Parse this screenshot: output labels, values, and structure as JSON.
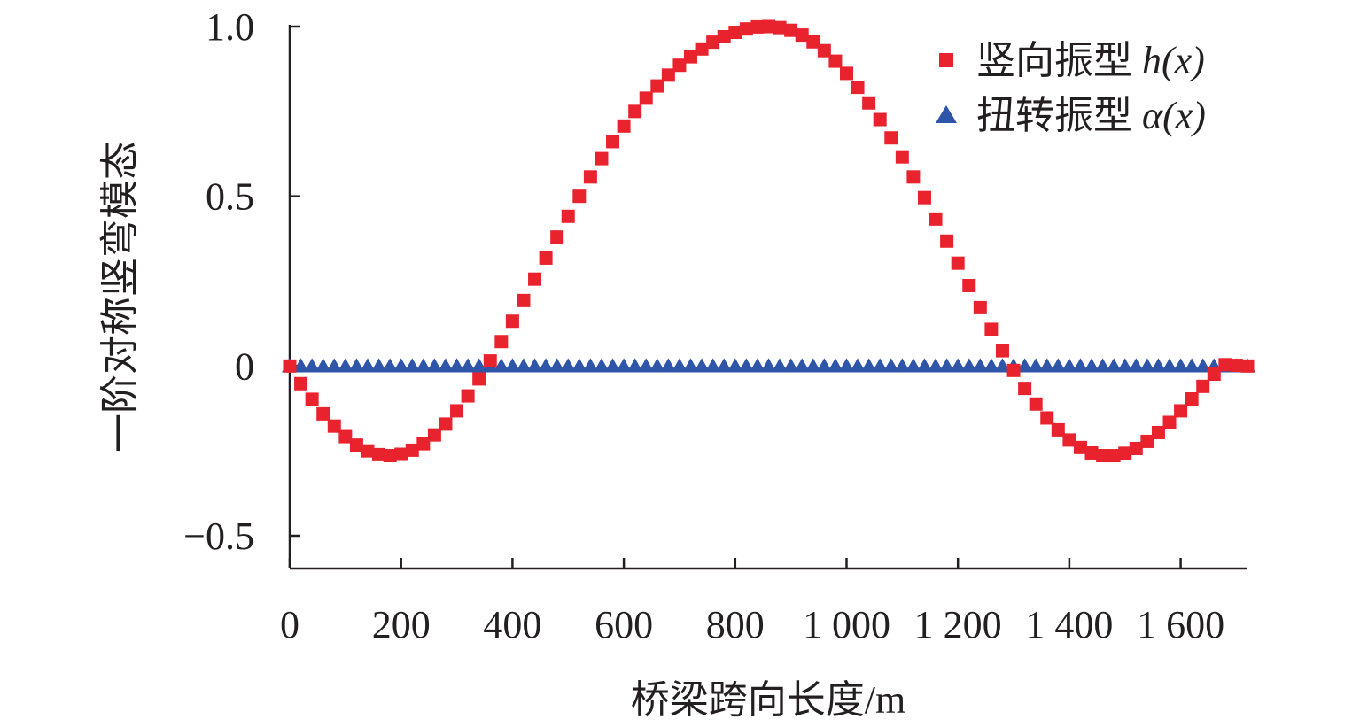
{
  "chart_data": {
    "type": "scatter",
    "xlabel": "桥梁跨向长度/m",
    "ylabel": "一阶对称竖弯模态",
    "xlim": [
      0,
      1720
    ],
    "ylim": [
      -0.5,
      1.0
    ],
    "x_ticks": [
      {
        "value": 0,
        "label": "0"
      },
      {
        "value": 200,
        "label": "200"
      },
      {
        "value": 400,
        "label": "400"
      },
      {
        "value": 600,
        "label": "600"
      },
      {
        "value": 800,
        "label": "800"
      },
      {
        "value": 1000,
        "label": "1 000"
      },
      {
        "value": 1200,
        "label": "1 200"
      },
      {
        "value": 1400,
        "label": "1 400"
      },
      {
        "value": 1600,
        "label": "1 600"
      }
    ],
    "y_ticks": [
      {
        "value": -0.5,
        "label": "−0.5"
      },
      {
        "value": 0,
        "label": "0"
      },
      {
        "value": 0.5,
        "label": "0.5"
      },
      {
        "value": 1.0,
        "label": "1.0"
      }
    ],
    "legend_position": "top-right",
    "grid": false,
    "series": [
      {
        "name": "竖向振型 h(x)",
        "legend_text": "竖向振型 ",
        "legend_symbol": "h",
        "legend_suffix": "(x)",
        "marker": "square",
        "color": "#e8232d",
        "x": [
          0,
          20,
          40,
          60,
          80,
          100,
          120,
          140,
          160,
          180,
          200,
          220,
          240,
          260,
          280,
          300,
          320,
          340,
          360,
          380,
          400,
          420,
          440,
          460,
          480,
          500,
          520,
          540,
          560,
          580,
          600,
          620,
          640,
          660,
          680,
          700,
          720,
          740,
          760,
          780,
          800,
          820,
          840,
          860,
          880,
          900,
          920,
          940,
          960,
          980,
          1000,
          1020,
          1040,
          1060,
          1080,
          1100,
          1120,
          1140,
          1160,
          1180,
          1200,
          1220,
          1240,
          1260,
          1280,
          1300,
          1320,
          1340,
          1360,
          1380,
          1400,
          1420,
          1440,
          1460,
          1480,
          1500,
          1520,
          1540,
          1560,
          1580,
          1600,
          1620,
          1640,
          1660,
          1680,
          1700,
          1720
        ],
        "y": [
          0,
          -0.052,
          -0.098,
          -0.141,
          -0.177,
          -0.208,
          -0.233,
          -0.25,
          -0.261,
          -0.264,
          -0.26,
          -0.248,
          -0.229,
          -0.203,
          -0.171,
          -0.132,
          -0.088,
          -0.038,
          0.015,
          0.072,
          0.132,
          0.193,
          0.256,
          0.318,
          0.38,
          0.441,
          0.5,
          0.557,
          0.611,
          0.661,
          0.707,
          0.75,
          0.789,
          0.825,
          0.857,
          0.886,
          0.911,
          0.934,
          0.954,
          0.97,
          0.983,
          0.993,
          0.999,
          1.0,
          0.997,
          0.989,
          0.975,
          0.955,
          0.929,
          0.898,
          0.862,
          0.821,
          0.775,
          0.726,
          0.672,
          0.616,
          0.557,
          0.496,
          0.433,
          0.368,
          0.303,
          0.237,
          0.172,
          0.108,
          0.045,
          -0.013,
          -0.066,
          -0.112,
          -0.153,
          -0.188,
          -0.218,
          -0.24,
          -0.256,
          -0.264,
          -0.264,
          -0.257,
          -0.243,
          -0.222,
          -0.196,
          -0.166,
          -0.132,
          -0.097,
          -0.06,
          -0.024,
          0.004,
          0.002,
          0
        ]
      },
      {
        "name": "扭转振型 α(x)",
        "legend_text": "扭转振型 ",
        "legend_symbol": "α",
        "legend_suffix": "(x)",
        "marker": "triangle",
        "color": "#2e55a8",
        "x": [
          0,
          20,
          40,
          60,
          80,
          100,
          120,
          140,
          160,
          180,
          200,
          220,
          240,
          260,
          280,
          300,
          320,
          340,
          360,
          380,
          400,
          420,
          440,
          460,
          480,
          500,
          520,
          540,
          560,
          580,
          600,
          620,
          640,
          660,
          680,
          700,
          720,
          740,
          760,
          780,
          800,
          820,
          840,
          860,
          880,
          900,
          920,
          940,
          960,
          980,
          1000,
          1020,
          1040,
          1060,
          1080,
          1100,
          1120,
          1140,
          1160,
          1180,
          1200,
          1220,
          1240,
          1260,
          1280,
          1300,
          1320,
          1340,
          1360,
          1380,
          1400,
          1420,
          1440,
          1460,
          1480,
          1500,
          1520,
          1540,
          1560,
          1580,
          1600,
          1620,
          1640,
          1660,
          1680,
          1700,
          1720
        ],
        "y": [
          0,
          0,
          0,
          0,
          0,
          0,
          0,
          0,
          0,
          0,
          0,
          0,
          0,
          0,
          0,
          0,
          0,
          0,
          0,
          0,
          0,
          0,
          0,
          0,
          0,
          0,
          0,
          0,
          0,
          0,
          0,
          0,
          0,
          0,
          0,
          0,
          0,
          0,
          0,
          0,
          0,
          0,
          0,
          0,
          0,
          0,
          0,
          0,
          0,
          0,
          0,
          0,
          0,
          0,
          0,
          0,
          0,
          0,
          0,
          0,
          0,
          0,
          0,
          0,
          0,
          0,
          0,
          0,
          0,
          0,
          0,
          0,
          0,
          0,
          0,
          0,
          0,
          0,
          0,
          0,
          0,
          0,
          0,
          0,
          0,
          0,
          0
        ]
      }
    ]
  }
}
